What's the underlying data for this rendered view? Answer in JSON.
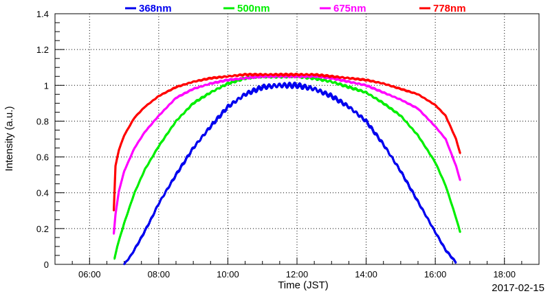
{
  "chart_data": {
    "type": "line",
    "title": "",
    "xlabel": "Time (JST)",
    "ylabel": "Intensity (a.u.)",
    "date_label": "2017-02-15",
    "x_unit": "hours (JST)",
    "xlim": [
      5.0,
      19.0
    ],
    "ylim": [
      0,
      1.4
    ],
    "x_ticks": [
      {
        "value": 6,
        "label": "06:00"
      },
      {
        "value": 8,
        "label": "08:00"
      },
      {
        "value": 10,
        "label": "10:00"
      },
      {
        "value": 12,
        "label": "12:00"
      },
      {
        "value": 14,
        "label": "14:00"
      },
      {
        "value": 16,
        "label": "16:00"
      },
      {
        "value": 18,
        "label": "18:00"
      }
    ],
    "y_ticks": [
      {
        "value": 0,
        "label": "0"
      },
      {
        "value": 0.2,
        "label": "0.2"
      },
      {
        "value": 0.4,
        "label": "0.4"
      },
      {
        "value": 0.6,
        "label": "0.6"
      },
      {
        "value": 0.8,
        "label": "0.8"
      },
      {
        "value": 1.0,
        "label": "1"
      },
      {
        "value": 1.2,
        "label": "1.2"
      },
      {
        "value": 1.4,
        "label": "1.4"
      }
    ],
    "grid": true,
    "legend_position": "top",
    "series": [
      {
        "name": "368nm",
        "color": "#0000ee",
        "x": [
          7.0,
          7.2,
          7.5,
          7.8,
          8.0,
          8.5,
          9.0,
          9.5,
          10.0,
          10.5,
          11.0,
          11.5,
          12.0,
          12.5,
          13.0,
          13.5,
          14.0,
          14.5,
          15.0,
          15.5,
          16.0,
          16.3,
          16.6
        ],
        "y": [
          0.0,
          0.05,
          0.15,
          0.26,
          0.34,
          0.5,
          0.65,
          0.77,
          0.88,
          0.95,
          0.99,
          1.0,
          1.0,
          0.98,
          0.94,
          0.88,
          0.8,
          0.67,
          0.52,
          0.35,
          0.18,
          0.08,
          0.01
        ]
      },
      {
        "name": "500nm",
        "color": "#00ee00",
        "x": [
          6.72,
          6.8,
          7.0,
          7.3,
          7.6,
          8.0,
          8.5,
          9.0,
          9.5,
          10.0,
          10.5,
          11.0,
          11.5,
          12.0,
          12.5,
          13.0,
          13.5,
          14.0,
          14.5,
          15.0,
          15.5,
          16.0,
          16.3,
          16.6,
          16.72
        ],
        "y": [
          0.03,
          0.1,
          0.23,
          0.4,
          0.53,
          0.66,
          0.8,
          0.9,
          0.96,
          1.01,
          1.04,
          1.05,
          1.05,
          1.05,
          1.04,
          1.02,
          0.99,
          0.96,
          0.9,
          0.83,
          0.72,
          0.57,
          0.44,
          0.26,
          0.18
        ]
      },
      {
        "name": "675nm",
        "color": "#ff00ff",
        "x": [
          6.7,
          6.75,
          6.85,
          7.0,
          7.3,
          7.6,
          8.0,
          8.5,
          9.0,
          9.5,
          10.0,
          10.5,
          11.0,
          11.5,
          12.0,
          12.5,
          13.0,
          13.5,
          14.0,
          14.5,
          15.0,
          15.5,
          16.0,
          16.3,
          16.6,
          16.72
        ],
        "y": [
          0.17,
          0.28,
          0.41,
          0.52,
          0.65,
          0.74,
          0.83,
          0.93,
          0.98,
          1.01,
          1.03,
          1.04,
          1.05,
          1.05,
          1.05,
          1.05,
          1.04,
          1.02,
          1.0,
          0.96,
          0.92,
          0.87,
          0.77,
          0.7,
          0.55,
          0.47
        ]
      },
      {
        "name": "778nm",
        "color": "#ff0000",
        "x": [
          6.7,
          6.75,
          6.85,
          7.0,
          7.3,
          7.6,
          8.0,
          8.5,
          9.0,
          9.5,
          10.0,
          10.5,
          11.0,
          11.5,
          12.0,
          12.5,
          13.0,
          13.5,
          14.0,
          14.5,
          15.0,
          15.5,
          16.0,
          16.3,
          16.6,
          16.72
        ],
        "y": [
          0.3,
          0.55,
          0.64,
          0.72,
          0.82,
          0.88,
          0.94,
          0.99,
          1.02,
          1.04,
          1.05,
          1.06,
          1.06,
          1.06,
          1.06,
          1.06,
          1.05,
          1.04,
          1.03,
          1.01,
          0.98,
          0.95,
          0.89,
          0.83,
          0.7,
          0.62
        ]
      }
    ]
  }
}
